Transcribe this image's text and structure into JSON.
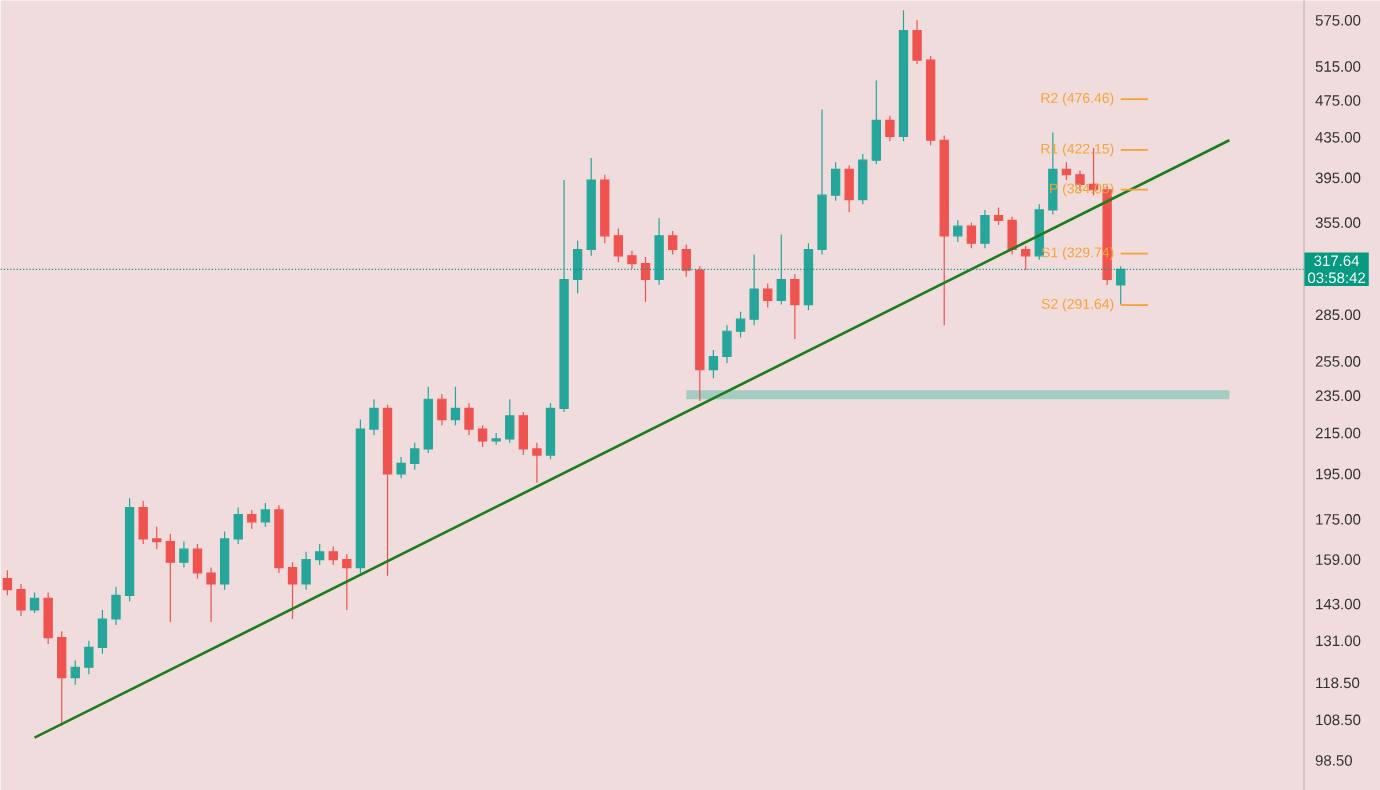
{
  "chart_data": {
    "type": "candlestick",
    "log": "y",
    "tick_labels": "y",
    "categories": [
      null,
      null,
      null,
      null,
      null,
      null,
      null,
      null,
      null,
      null,
      null,
      null,
      null,
      null,
      null,
      null,
      null,
      null,
      null,
      null,
      null,
      null,
      null,
      null,
      null,
      null,
      null,
      null,
      null,
      null,
      null,
      null,
      null,
      null,
      null,
      null,
      null,
      null,
      null,
      null,
      null,
      null,
      null,
      null,
      null,
      null,
      null,
      null,
      null,
      null,
      null,
      null,
      null,
      null,
      null,
      null,
      null,
      null,
      null,
      null,
      null,
      null,
      null,
      null,
      null,
      null,
      null,
      null,
      null,
      null,
      null,
      null,
      null,
      null,
      null,
      null,
      null,
      null,
      null,
      null,
      null,
      null,
      null,
      null,
      null,
      null,
      null,
      null,
      null,
      null,
      null,
      null,
      null,
      null,
      null,
      null
    ],
    "ohlc": [
      [
        152,
        155,
        146,
        148
      ],
      [
        148,
        150,
        139,
        141
      ],
      [
        141,
        147,
        140,
        145
      ],
      [
        145,
        147,
        130,
        132
      ],
      [
        132,
        134,
        107,
        120
      ],
      [
        120,
        125,
        118,
        123
      ],
      [
        123,
        131,
        121,
        129
      ],
      [
        129,
        141,
        127,
        138
      ],
      [
        138,
        149,
        136,
        146
      ],
      [
        146,
        184,
        144,
        180
      ],
      [
        180,
        183,
        165,
        167
      ],
      [
        167,
        172,
        163,
        166
      ],
      [
        166,
        169,
        137,
        158
      ],
      [
        158,
        166,
        156,
        163
      ],
      [
        163,
        165,
        152,
        154
      ],
      [
        154,
        156,
        137,
        150
      ],
      [
        150,
        170,
        148,
        167
      ],
      [
        167,
        180,
        165,
        177
      ],
      [
        177,
        179,
        171,
        174
      ],
      [
        174,
        182,
        172,
        179
      ],
      [
        179,
        181,
        154,
        156
      ],
      [
        156,
        158,
        138,
        150
      ],
      [
        150,
        162,
        148,
        159
      ],
      [
        159,
        165,
        157,
        162
      ],
      [
        162,
        164,
        157,
        159
      ],
      [
        159,
        161,
        141,
        156
      ],
      [
        156,
        222,
        154,
        217
      ],
      [
        217,
        233,
        214,
        228
      ],
      [
        228,
        230,
        153,
        195
      ],
      [
        195,
        203,
        193,
        200
      ],
      [
        200,
        210,
        197,
        207
      ],
      [
        207,
        240,
        205,
        233
      ],
      [
        233,
        236,
        219,
        222
      ],
      [
        222,
        240,
        219,
        228
      ],
      [
        228,
        231,
        214,
        217
      ],
      [
        217,
        219,
        208,
        211
      ],
      [
        211,
        215,
        209,
        212
      ],
      [
        212,
        233,
        210,
        224
      ],
      [
        224,
        226,
        204,
        207
      ],
      [
        207,
        210,
        191,
        204
      ],
      [
        204,
        231,
        202,
        228
      ],
      [
        228,
        393,
        226,
        310
      ],
      [
        310,
        340,
        300,
        333
      ],
      [
        333,
        414,
        328,
        393
      ],
      [
        393,
        398,
        338,
        344
      ],
      [
        344,
        350,
        323,
        328
      ],
      [
        328,
        332,
        318,
        322
      ],
      [
        322,
        327,
        294,
        310
      ],
      [
        310,
        359,
        306,
        344
      ],
      [
        344,
        348,
        329,
        333
      ],
      [
        333,
        337,
        312,
        317
      ],
      [
        317,
        320,
        232,
        250
      ],
      [
        250,
        262,
        245,
        258
      ],
      [
        258,
        278,
        254,
        274
      ],
      [
        274,
        287,
        270,
        282
      ],
      [
        282,
        329,
        278,
        303
      ],
      [
        303,
        307,
        290,
        295
      ],
      [
        295,
        345,
        292,
        310
      ],
      [
        310,
        314,
        269,
        292
      ],
      [
        292,
        338,
        288,
        333
      ],
      [
        333,
        465,
        329,
        379
      ],
      [
        379,
        410,
        374,
        403
      ],
      [
        403,
        407,
        364,
        375
      ],
      [
        375,
        418,
        371,
        412
      ],
      [
        412,
        498,
        408,
        453
      ],
      [
        453,
        458,
        431,
        436
      ],
      [
        436,
        589,
        431,
        561
      ],
      [
        561,
        575,
        518,
        523
      ],
      [
        523,
        528,
        427,
        432
      ],
      [
        432,
        437,
        278,
        344
      ],
      [
        344,
        357,
        339,
        352
      ],
      [
        352,
        355,
        334,
        338
      ],
      [
        338,
        366,
        334,
        361
      ],
      [
        361,
        368,
        353,
        357
      ],
      [
        357,
        360,
        329,
        333
      ],
      [
        333,
        336,
        317,
        328
      ],
      [
        328,
        371,
        325,
        366
      ],
      [
        366,
        440,
        362,
        403
      ],
      [
        403,
        410,
        393,
        398
      ],
      [
        398,
        402,
        383,
        389
      ],
      [
        389,
        424,
        379,
        384
      ],
      [
        384,
        388,
        306,
        310
      ],
      [
        306,
        320,
        292,
        317.64
      ],
      null,
      null,
      null,
      null,
      null,
      null,
      null,
      null,
      null,
      null,
      null,
      null,
      null
    ],
    "series": [
      {
        "type": "line",
        "values": [
          null,
          null,
          104,
          null,
          null,
          null,
          null,
          null,
          null,
          null,
          null,
          null,
          null,
          null,
          null,
          null,
          null,
          null,
          null,
          null,
          null,
          null,
          null,
          null,
          null,
          null,
          null,
          null,
          null,
          null,
          null,
          null,
          null,
          null,
          null,
          null,
          null,
          null,
          null,
          null,
          null,
          null,
          null,
          null,
          null,
          null,
          null,
          null,
          null,
          null,
          null,
          null,
          null,
          null,
          null,
          null,
          null,
          null,
          null,
          null,
          null,
          null,
          null,
          null,
          null,
          null,
          null,
          null,
          null,
          null,
          null,
          null,
          null,
          null,
          null,
          null,
          null,
          null,
          null,
          null,
          null,
          null,
          null,
          null,
          null,
          null,
          null,
          null,
          null,
          null,
          432,
          null,
          null,
          null,
          null,
          null
        ],
        "color": "#1e7d1e"
      },
      {
        "type": "line",
        "name": "R2 (476.46)",
        "values": [
          null,
          null,
          null,
          null,
          null,
          null,
          null,
          null,
          null,
          null,
          null,
          null,
          null,
          null,
          null,
          null,
          null,
          null,
          null,
          null,
          null,
          null,
          null,
          null,
          null,
          null,
          null,
          null,
          null,
          null,
          null,
          null,
          null,
          null,
          null,
          null,
          null,
          null,
          null,
          null,
          null,
          null,
          null,
          null,
          null,
          null,
          null,
          null,
          null,
          null,
          null,
          null,
          null,
          null,
          null,
          null,
          null,
          null,
          null,
          null,
          null,
          null,
          null,
          null,
          null,
          null,
          null,
          null,
          null,
          null,
          null,
          null,
          null,
          null,
          null,
          null,
          null,
          null,
          null,
          null,
          null,
          null,
          476.46,
          null,
          476.46,
          null,
          null,
          null,
          null,
          null,
          null,
          null,
          null,
          null,
          null,
          null
        ],
        "color": "#f7a234"
      },
      {
        "type": "line",
        "name": "R1 (422.15)",
        "values": [
          null,
          null,
          null,
          null,
          null,
          null,
          null,
          null,
          null,
          null,
          null,
          null,
          null,
          null,
          null,
          null,
          null,
          null,
          null,
          null,
          null,
          null,
          null,
          null,
          null,
          null,
          null,
          null,
          null,
          null,
          null,
          null,
          null,
          null,
          null,
          null,
          null,
          null,
          null,
          null,
          null,
          null,
          null,
          null,
          null,
          null,
          null,
          null,
          null,
          null,
          null,
          null,
          null,
          null,
          null,
          null,
          null,
          null,
          null,
          null,
          null,
          null,
          null,
          null,
          null,
          null,
          null,
          null,
          null,
          null,
          null,
          null,
          null,
          null,
          null,
          null,
          null,
          null,
          null,
          null,
          null,
          null,
          422.15,
          null,
          422.15,
          null,
          null,
          null,
          null,
          null,
          null,
          null,
          null,
          null,
          null,
          null
        ],
        "color": "#f7a234"
      },
      {
        "type": "line",
        "name": "P (384.05)",
        "values": [
          null,
          null,
          null,
          null,
          null,
          null,
          null,
          null,
          null,
          null,
          null,
          null,
          null,
          null,
          null,
          null,
          null,
          null,
          null,
          null,
          null,
          null,
          null,
          null,
          null,
          null,
          null,
          null,
          null,
          null,
          null,
          null,
          null,
          null,
          null,
          null,
          null,
          null,
          null,
          null,
          null,
          null,
          null,
          null,
          null,
          null,
          null,
          null,
          null,
          null,
          null,
          null,
          null,
          null,
          null,
          null,
          null,
          null,
          null,
          null,
          null,
          null,
          null,
          null,
          null,
          null,
          null,
          null,
          null,
          null,
          null,
          null,
          null,
          null,
          null,
          null,
          null,
          null,
          null,
          null,
          null,
          null,
          384.05,
          null,
          384.05,
          null,
          null,
          null,
          null,
          null,
          null,
          null,
          null,
          null,
          null,
          null
        ],
        "color": "#f7a234"
      },
      {
        "type": "line",
        "name": "S1 (329.74)",
        "values": [
          null,
          null,
          null,
          null,
          null,
          null,
          null,
          null,
          null,
          null,
          null,
          null,
          null,
          null,
          null,
          null,
          null,
          null,
          null,
          null,
          null,
          null,
          null,
          null,
          null,
          null,
          null,
          null,
          null,
          null,
          null,
          null,
          null,
          null,
          null,
          null,
          null,
          null,
          null,
          null,
          null,
          null,
          null,
          null,
          null,
          null,
          null,
          null,
          null,
          null,
          null,
          null,
          null,
          null,
          null,
          null,
          null,
          null,
          null,
          null,
          null,
          null,
          null,
          null,
          null,
          null,
          null,
          null,
          null,
          null,
          null,
          null,
          null,
          null,
          null,
          null,
          null,
          null,
          null,
          null,
          null,
          null,
          329.74,
          null,
          329.74,
          null,
          null,
          null,
          null,
          null,
          null,
          null,
          null,
          null,
          null,
          null
        ],
        "color": "#f7a234"
      },
      {
        "type": "line",
        "name": "S2 (291.64)",
        "values": [
          null,
          null,
          null,
          null,
          null,
          null,
          null,
          null,
          null,
          null,
          null,
          null,
          null,
          null,
          null,
          null,
          null,
          null,
          null,
          null,
          null,
          null,
          null,
          null,
          null,
          null,
          null,
          null,
          null,
          null,
          null,
          null,
          null,
          null,
          null,
          null,
          null,
          null,
          null,
          null,
          null,
          null,
          null,
          null,
          null,
          null,
          null,
          null,
          null,
          null,
          null,
          null,
          null,
          null,
          null,
          null,
          null,
          null,
          null,
          null,
          null,
          null,
          null,
          null,
          null,
          null,
          null,
          null,
          null,
          null,
          null,
          null,
          null,
          null,
          null,
          null,
          null,
          null,
          null,
          null,
          null,
          null,
          291.64,
          null,
          291.64,
          null,
          null,
          null,
          null,
          null,
          null,
          null,
          null,
          null,
          null,
          null
        ],
        "color": "#f7a234"
      }
    ],
    "ylim": [
      91.8,
      603
    ],
    "yticks": [
      {
        "value": 575,
        "label": "575.00"
      },
      {
        "value": 515,
        "label": "515.00"
      },
      {
        "value": 475,
        "label": "475.00"
      },
      {
        "value": 435,
        "label": "435.00"
      },
      {
        "value": 395,
        "label": "395.00"
      },
      {
        "value": 355,
        "label": "355.00"
      },
      {
        "value": 285,
        "label": "285.00"
      },
      {
        "value": 255,
        "label": "255.00"
      },
      {
        "value": 235,
        "label": "235.00"
      },
      {
        "value": 215,
        "label": "215.00"
      },
      {
        "value": 195,
        "label": "195.00"
      },
      {
        "value": 175,
        "label": "175.00"
      },
      {
        "value": 159,
        "label": "159.00"
      },
      {
        "value": 143,
        "label": "143.00"
      },
      {
        "value": 131,
        "label": "131.00"
      },
      {
        "value": 118.5,
        "label": "118.50"
      },
      {
        "value": 108.5,
        "label": "108.50"
      },
      {
        "value": 98.5,
        "label": "98.50"
      }
    ],
    "ref_lines": [
      {
        "axis": "y",
        "value": 317.64,
        "label": "317.64",
        "color": "#089981",
        "line_style": "dotted"
      }
    ],
    "bands": [
      {
        "axis": "y",
        "from": 233,
        "to": 238,
        "color": "#a3cdc2"
      }
    ],
    "annotations": [
      "03:58:42"
    ]
  }
}
